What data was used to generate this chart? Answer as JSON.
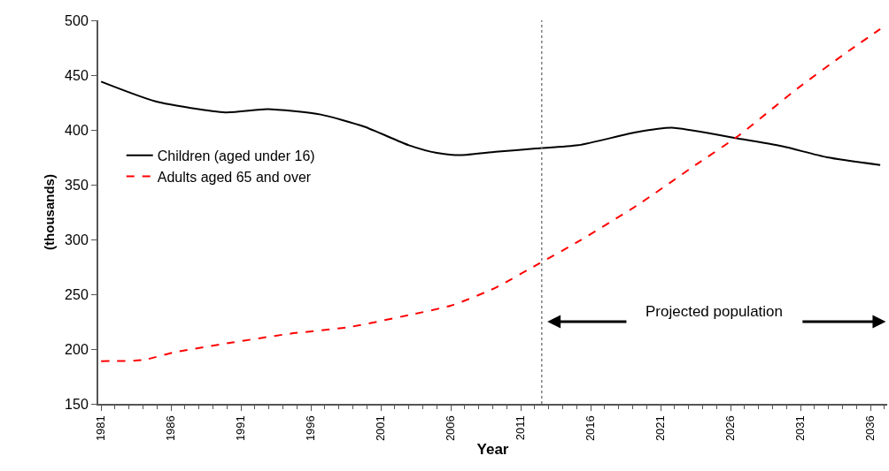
{
  "chart_data": {
    "type": "line",
    "xlabel": "Year",
    "ylabel": "(thousands)",
    "xlim": [
      1980.8,
      2037.2
    ],
    "ylim": [
      150,
      500
    ],
    "xticks": [
      1981,
      1986,
      1991,
      1996,
      2001,
      2006,
      2011,
      2016,
      2021,
      2026,
      2031,
      2036
    ],
    "yticks": [
      150,
      200,
      250,
      300,
      350,
      400,
      450,
      500
    ],
    "legend": "left",
    "marker": "none",
    "series": [
      {
        "name": "Children (aged under 16)",
        "color": "#000000",
        "line_style": "solid",
        "x": [
          1981,
          1984.9,
          1989.9,
          1992.9,
          1996.7,
          1999.8,
          2003,
          2005,
          2006.7,
          2009.2,
          2012.1,
          2015.1,
          2019.3,
          2021.8,
          2026.6,
          2029.7,
          2032.9,
          2036.7
        ],
        "values": [
          444,
          426,
          416,
          419,
          414,
          403,
          386,
          379,
          377,
          380,
          383,
          386,
          398,
          402,
          392,
          385,
          375,
          368
        ]
      },
      {
        "name": "Adults aged 65 and over",
        "color": "#ff0000",
        "line_style": "dashed",
        "x": [
          1981,
          1984,
          1986.2,
          1990.4,
          1994.5,
          1998.7,
          2003,
          2006.1,
          2009.2,
          2012.3,
          2015.1,
          2019.3,
          2023.5,
          2026.6,
          2030.8,
          2034,
          2036.7
        ],
        "values": [
          189,
          190,
          197,
          206,
          214,
          220,
          231,
          240,
          256,
          278,
          298,
          331,
          368,
          395,
          438,
          468,
          492
        ]
      }
    ],
    "ref_lines": [
      {
        "axis": "x",
        "value": 2012.5,
        "color": "#808080",
        "line_style": "dotted"
      }
    ],
    "annotations": [
      "Projected population"
    ]
  }
}
